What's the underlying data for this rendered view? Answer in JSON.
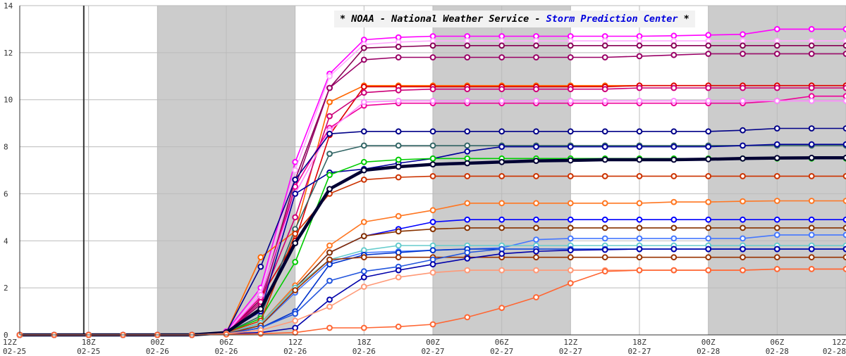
{
  "header": {
    "prefix": "* NOAA - National Weather Service - ",
    "highlight": "Storm Prediction Center",
    "suffix": " *"
  },
  "chart_data": {
    "type": "line",
    "ylim": [
      0,
      14
    ],
    "yticks": [
      0,
      2,
      4,
      6,
      8,
      10,
      12,
      14
    ],
    "xlim": [
      0,
      12
    ],
    "x_ticks": [
      {
        "x": 0,
        "hour": "12Z",
        "date": "02-25"
      },
      {
        "x": 1,
        "hour": "18Z",
        "date": "02-25"
      },
      {
        "x": 2,
        "hour": "00Z",
        "date": "02-26"
      },
      {
        "x": 3,
        "hour": "06Z",
        "date": "02-26"
      },
      {
        "x": 4,
        "hour": "12Z",
        "date": "02-26"
      },
      {
        "x": 5,
        "hour": "18Z",
        "date": "02-26"
      },
      {
        "x": 6,
        "hour": "00Z",
        "date": "02-27"
      },
      {
        "x": 7,
        "hour": "06Z",
        "date": "02-27"
      },
      {
        "x": 8,
        "hour": "12Z",
        "date": "02-27"
      },
      {
        "x": 9,
        "hour": "18Z",
        "date": "02-27"
      },
      {
        "x": 10,
        "hour": "00Z",
        "date": "02-28"
      },
      {
        "x": 11,
        "hour": "06Z",
        "date": "02-28"
      },
      {
        "x": 12,
        "hour": "12Z",
        "date": "02-28"
      }
    ],
    "night_bands": [
      [
        2,
        4
      ],
      [
        6,
        8
      ],
      [
        10,
        12
      ]
    ],
    "vertical_marker_x": 0.93,
    "grid": true,
    "colors": {
      "background": "#ffffff",
      "night_band": "#cccccc",
      "grid": "#bbbbbb",
      "marker": "#333333"
    },
    "x_step": 0.5,
    "series": [
      {
        "color": "#ff00ff",
        "values": [
          0,
          0,
          0,
          0,
          0,
          0,
          0.15,
          2.0,
          7.35,
          11.1,
          12.55,
          12.65,
          12.7,
          12.7,
          12.7,
          12.7,
          12.7,
          12.7,
          12.7,
          12.72,
          12.75,
          12.78,
          13.0,
          13.0,
          13.0
        ]
      },
      {
        "color": "#ffaaff",
        "values": [
          0,
          0,
          0,
          0,
          0,
          0,
          0.1,
          1.8,
          7.0,
          11.0,
          12.35,
          12.45,
          12.5,
          12.5,
          12.5,
          12.5,
          12.5,
          12.5,
          12.5,
          12.5,
          12.5,
          12.5,
          12.5,
          12.5,
          12.5
        ]
      },
      {
        "color": "#880055",
        "values": [
          0,
          0,
          0,
          0,
          0,
          0,
          0.1,
          1.5,
          6.6,
          10.5,
          12.2,
          12.25,
          12.3,
          12.3,
          12.3,
          12.3,
          12.3,
          12.3,
          12.3,
          12.3,
          12.3,
          12.3,
          12.3,
          12.3,
          12.3
        ]
      },
      {
        "color": "#990066",
        "values": [
          0,
          0,
          0,
          0,
          0,
          0,
          0.1,
          1.3,
          6.3,
          10.5,
          11.7,
          11.8,
          11.8,
          11.8,
          11.8,
          11.8,
          11.8,
          11.8,
          11.85,
          11.9,
          11.95,
          11.95,
          11.95,
          11.95,
          11.95
        ]
      },
      {
        "color": "#ff6600",
        "values": [
          0,
          0,
          0,
          0,
          0,
          0,
          0.1,
          3.3,
          4.4,
          9.9,
          10.6,
          10.6,
          10.6,
          10.6,
          10.6,
          10.6,
          10.6,
          10.6,
          10.6,
          10.6,
          10.6,
          10.6,
          10.6,
          10.6,
          10.6
        ]
      },
      {
        "color": "#dd0000",
        "values": [
          0,
          0,
          0,
          0,
          0,
          0,
          0.1,
          1.6,
          4.0,
          8.5,
          10.55,
          10.55,
          10.55,
          10.55,
          10.55,
          10.55,
          10.55,
          10.55,
          10.6,
          10.6,
          10.6,
          10.6,
          10.6,
          10.6,
          10.6
        ]
      },
      {
        "color": "#cc0077",
        "values": [
          0,
          0,
          0,
          0,
          0,
          0,
          0.1,
          1.4,
          5.0,
          9.3,
          10.3,
          10.4,
          10.45,
          10.45,
          10.45,
          10.45,
          10.45,
          10.45,
          10.5,
          10.5,
          10.5,
          10.5,
          10.5,
          10.5,
          10.5
        ]
      },
      {
        "color": "#ee0099",
        "values": [
          0,
          0,
          0,
          0,
          0,
          0,
          0.1,
          1.6,
          6.3,
          8.8,
          9.75,
          9.85,
          9.85,
          9.85,
          9.85,
          9.85,
          9.85,
          9.85,
          9.85,
          9.85,
          9.85,
          9.85,
          9.95,
          10.15,
          10.15
        ]
      },
      {
        "color": "#ff88ff",
        "values": [
          0,
          0,
          0,
          0,
          0,
          0,
          0.1,
          1.7,
          6.0,
          8.7,
          9.9,
          9.95,
          9.95,
          9.95,
          9.95,
          9.95,
          9.95,
          9.95,
          9.95,
          9.95,
          9.95,
          9.95,
          9.95,
          9.95,
          9.95
        ]
      },
      {
        "color": "#000088",
        "values": [
          0,
          0,
          0,
          0,
          0,
          0,
          0.1,
          2.9,
          6.6,
          8.55,
          8.65,
          8.65,
          8.65,
          8.65,
          8.65,
          8.65,
          8.65,
          8.65,
          8.65,
          8.65,
          8.65,
          8.7,
          8.78,
          8.78,
          8.78
        ]
      },
      {
        "color": "#336666",
        "values": [
          0,
          0,
          0,
          0,
          0,
          0,
          0.1,
          0.8,
          4.5,
          7.7,
          8.05,
          8.05,
          8.05,
          8.05,
          8.05,
          8.05,
          8.05,
          8.05,
          8.05,
          8.05,
          8.05,
          8.05,
          8.05,
          8.05,
          8.05
        ]
      },
      {
        "color": "#000099",
        "values": [
          0,
          0,
          0,
          0,
          0,
          0,
          0.1,
          1.0,
          6.0,
          6.9,
          7.05,
          7.3,
          7.5,
          7.8,
          8.0,
          8.0,
          8.0,
          8.0,
          8.0,
          8.0,
          8.0,
          8.05,
          8.1,
          8.1,
          8.1
        ]
      },
      {
        "color": "#00cc00",
        "values": [
          0,
          0,
          0,
          0,
          0,
          0,
          0.1,
          0.7,
          3.1,
          6.8,
          7.35,
          7.45,
          7.5,
          7.5,
          7.5,
          7.5,
          7.5,
          7.5,
          7.5,
          7.5,
          7.5,
          7.5,
          7.5,
          7.5,
          7.5
        ]
      },
      {
        "color": "#cc3300",
        "values": [
          0,
          0,
          0,
          0,
          0,
          0,
          0.1,
          0.6,
          4.3,
          6.0,
          6.6,
          6.7,
          6.75,
          6.75,
          6.75,
          6.75,
          6.75,
          6.75,
          6.75,
          6.75,
          6.75,
          6.75,
          6.75,
          6.75,
          6.75
        ]
      },
      {
        "color": "#000033",
        "width": 4.5,
        "values": [
          0,
          0,
          0,
          0,
          0,
          0,
          0.1,
          1.1,
          3.9,
          6.2,
          7.0,
          7.15,
          7.25,
          7.3,
          7.35,
          7.4,
          7.42,
          7.45,
          7.45,
          7.45,
          7.47,
          7.5,
          7.52,
          7.53,
          7.53
        ]
      },
      {
        "color": "#ff7722",
        "values": [
          0,
          0,
          0,
          0,
          0,
          0,
          0.05,
          0.5,
          2.1,
          3.8,
          4.8,
          5.05,
          5.3,
          5.6,
          5.6,
          5.6,
          5.6,
          5.6,
          5.6,
          5.65,
          5.65,
          5.68,
          5.7,
          5.7,
          5.7
        ]
      },
      {
        "color": "#0000ff",
        "values": [
          0,
          0,
          0,
          0,
          0,
          0,
          0.05,
          0.5,
          2.0,
          3.5,
          4.2,
          4.5,
          4.8,
          4.9,
          4.9,
          4.9,
          4.9,
          4.9,
          4.9,
          4.9,
          4.9,
          4.9,
          4.9,
          4.9,
          4.9
        ]
      },
      {
        "color": "#883300",
        "values": [
          0,
          0,
          0,
          0,
          0,
          0,
          0.05,
          0.5,
          2.0,
          3.5,
          4.2,
          4.4,
          4.5,
          4.55,
          4.55,
          4.55,
          4.55,
          4.55,
          4.55,
          4.55,
          4.55,
          4.55,
          4.55,
          4.55,
          4.55
        ]
      },
      {
        "color": "#4477ff",
        "values": [
          0,
          0,
          0,
          0,
          0,
          0,
          0.05,
          0.4,
          1.8,
          3.1,
          3.5,
          3.55,
          3.6,
          3.65,
          3.7,
          4.05,
          4.1,
          4.1,
          4.1,
          4.1,
          4.1,
          4.1,
          4.25,
          4.25,
          4.25
        ]
      },
      {
        "color": "#66cccc",
        "values": [
          0,
          0,
          0,
          0,
          0,
          0,
          0.05,
          0.5,
          2.0,
          3.2,
          3.6,
          3.8,
          3.8,
          3.8,
          3.8,
          3.8,
          3.8,
          3.8,
          3.8,
          3.8,
          3.8,
          3.8,
          3.8,
          3.8,
          3.8
        ]
      },
      {
        "color": "#0033cc",
        "values": [
          0,
          0,
          0,
          0,
          0,
          0,
          0.05,
          0.3,
          1.0,
          3.0,
          3.4,
          3.5,
          3.6,
          3.65,
          3.65,
          3.65,
          3.65,
          3.65,
          3.65,
          3.65,
          3.65,
          3.65,
          3.65,
          3.65,
          3.65
        ]
      },
      {
        "color": "#993300",
        "values": [
          0,
          0,
          0,
          0,
          0,
          0,
          0.05,
          0.4,
          1.9,
          3.2,
          3.3,
          3.3,
          3.3,
          3.3,
          3.3,
          3.3,
          3.3,
          3.3,
          3.3,
          3.3,
          3.3,
          3.3,
          3.3,
          3.3,
          3.3
        ]
      },
      {
        "color": "#2255dd",
        "values": [
          0,
          0,
          0,
          0,
          0,
          0,
          0.05,
          0.3,
          0.9,
          2.3,
          2.7,
          2.9,
          3.2,
          3.5,
          3.65,
          3.65,
          3.65,
          3.65,
          3.65,
          3.65,
          3.65,
          3.65,
          3.65,
          3.65,
          3.65
        ]
      },
      {
        "color": "#0000aa",
        "values": [
          0,
          0,
          0,
          0,
          0,
          0,
          0.05,
          0.1,
          0.3,
          1.5,
          2.45,
          2.75,
          3.0,
          3.25,
          3.45,
          3.55,
          3.6,
          3.62,
          3.65,
          3.65,
          3.65,
          3.65,
          3.65,
          3.65,
          3.65
        ]
      },
      {
        "color": "#ff9977",
        "values": [
          0,
          0,
          0,
          0,
          0,
          0,
          0.05,
          0.2,
          0.6,
          1.2,
          2.05,
          2.45,
          2.65,
          2.75,
          2.75,
          2.75,
          2.75,
          2.75,
          2.75,
          2.75,
          2.75,
          2.75,
          2.8,
          2.8,
          2.8
        ]
      },
      {
        "color": "#ff6633",
        "values": [
          0,
          0,
          0,
          0,
          0,
          0,
          0.02,
          0.05,
          0.1,
          0.3,
          0.3,
          0.35,
          0.45,
          0.75,
          1.15,
          1.6,
          2.2,
          2.7,
          2.75,
          2.75,
          2.75,
          2.75,
          2.8,
          2.8,
          2.8
        ]
      }
    ]
  }
}
